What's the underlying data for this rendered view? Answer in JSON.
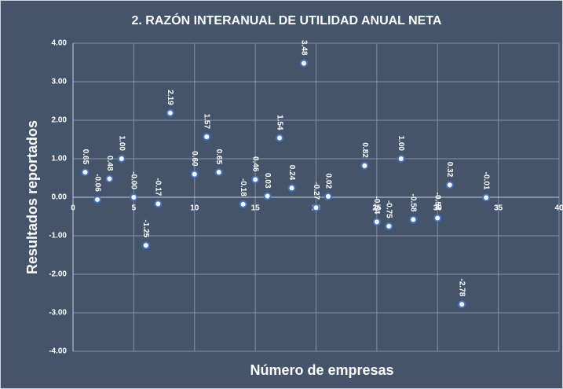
{
  "chart_data": {
    "type": "scatter",
    "title": "2. RAZÓN INTERANUAL DE UTILIDAD ANUAL NETA",
    "x_label": "Número de empresas",
    "y_label": "Resultados reportados",
    "x": [
      1,
      2,
      3,
      4,
      5,
      6,
      7,
      8,
      10,
      11,
      12,
      14,
      15,
      16,
      17,
      18,
      19,
      20,
      21,
      24,
      25,
      26,
      27,
      28,
      30,
      31,
      32,
      34
    ],
    "values": [
      0.65,
      -0.06,
      0.48,
      1.0,
      0,
      -1.25,
      -0.17,
      2.19,
      0.6,
      1.57,
      0.65,
      -0.18,
      0.46,
      0.03,
      1.54,
      0.24,
      3.48,
      -0.27,
      0.02,
      0.82,
      -0.64,
      -0.75,
      1.0,
      -0.58,
      -0.54,
      0.32,
      -2.78,
      -0.01
    ],
    "value_labels": [
      "0.65",
      "-0.06",
      "0.48",
      "1.00",
      "-0.00",
      "-1.25",
      "-0.17",
      "2.19",
      "0.60",
      "1.57",
      "0.65",
      "-0.18",
      "0.46",
      "0.03",
      "1.54",
      "0.24",
      "3.48",
      "-0.27",
      "0.02",
      "0.82",
      "-0.64",
      "-0.75",
      "1.00",
      "-0.58",
      "-0.54",
      "0.32",
      "-2.78",
      "-0.01"
    ],
    "color": "#4472c4",
    "xlim": [
      0,
      40
    ],
    "xticks": [
      0,
      5,
      10,
      15,
      20,
      25,
      30,
      35,
      40
    ],
    "ylim": [
      -4,
      4
    ],
    "yticks": [
      {
        "value": -4,
        "label": "-4.00"
      },
      {
        "value": -3,
        "label": "-3.00"
      },
      {
        "value": -2,
        "label": "-2.00"
      },
      {
        "value": -1,
        "label": "-1.00"
      },
      {
        "value": 0,
        "label": "0.00"
      },
      {
        "value": 1,
        "label": "1.00"
      },
      {
        "value": 2,
        "label": "2.00"
      },
      {
        "value": 3,
        "label": "3.00"
      },
      {
        "value": 4,
        "label": "4.00"
      }
    ],
    "grid": true
  }
}
